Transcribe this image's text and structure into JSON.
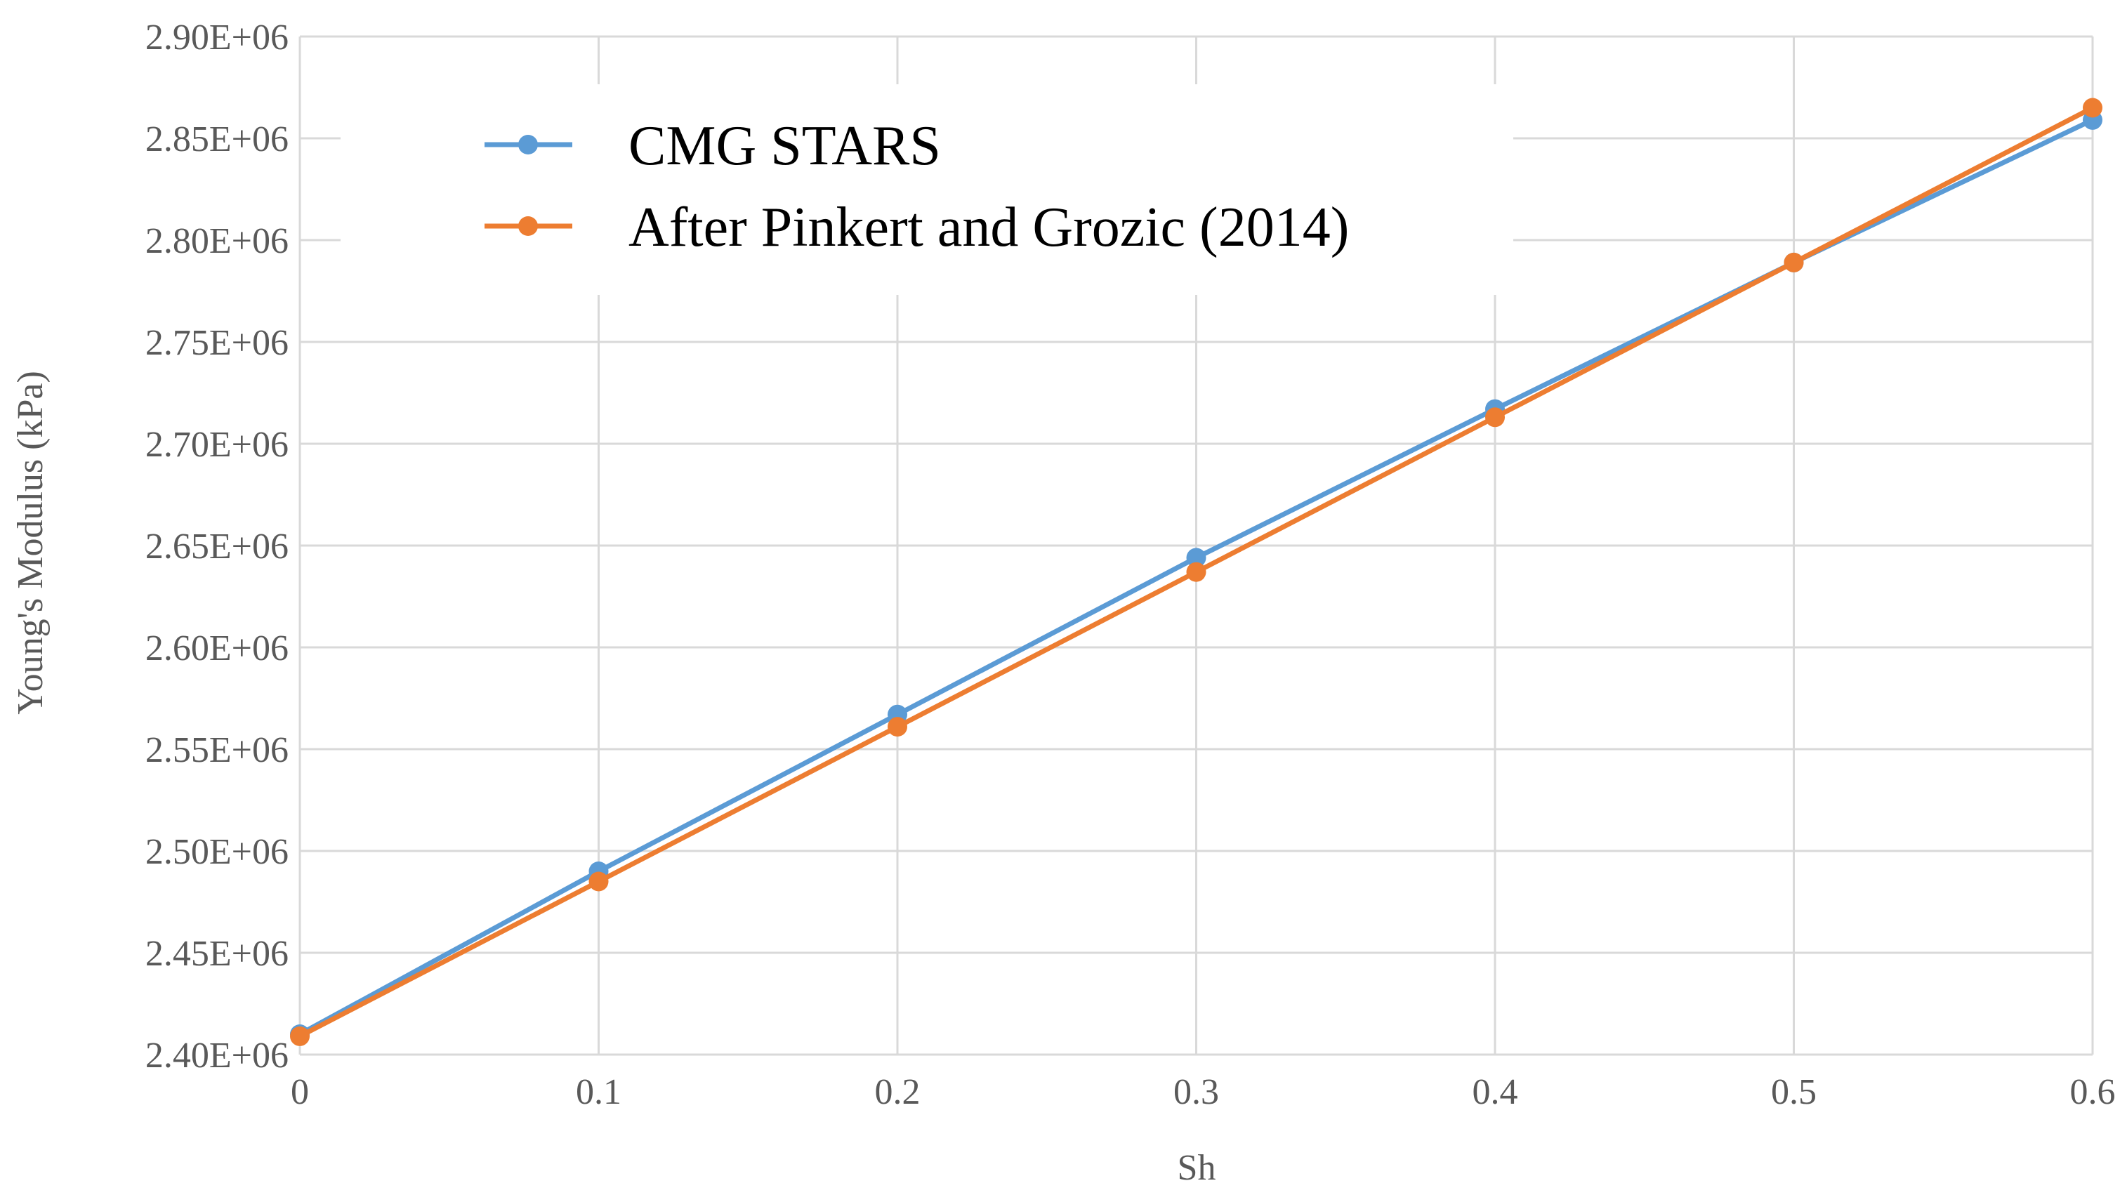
{
  "chart_data": {
    "type": "line",
    "title": "",
    "xlabel": "Sh",
    "ylabel": "Young's Modulus (kPa)",
    "x": [
      0,
      0.1,
      0.2,
      0.3,
      0.4,
      0.5,
      0.6
    ],
    "x_tick_labels": [
      "0",
      "0.1",
      "0.2",
      "0.3",
      "0.4",
      "0.5",
      "0.6"
    ],
    "y_tick_labels": [
      "2.40E+06",
      "2.45E+06",
      "2.50E+06",
      "2.55E+06",
      "2.60E+06",
      "2.65E+06",
      "2.70E+06",
      "2.75E+06",
      "2.80E+06",
      "2.85E+06",
      "2.90E+06"
    ],
    "xlim": [
      0,
      0.6
    ],
    "ylim": [
      2400000,
      2900000
    ],
    "y_tick_step": 50000,
    "grid": true,
    "legend_position": "top-left",
    "series": [
      {
        "name": "CMG STARS",
        "color": "#5B9BD5",
        "values": [
          2410000,
          2490000,
          2567000,
          2644000,
          2717000,
          2789000,
          2859000
        ]
      },
      {
        "name": "After Pinkert and Grozic (2014)",
        "color": "#ED7D31",
        "values": [
          2409000,
          2485000,
          2561000,
          2637000,
          2713000,
          2789000,
          2865000
        ]
      }
    ]
  }
}
